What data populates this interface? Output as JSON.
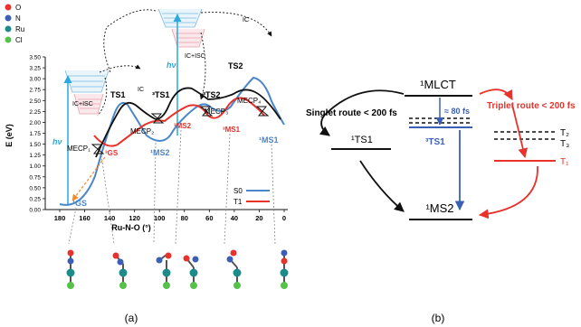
{
  "legend_atoms": [
    {
      "label": "O",
      "color": "#e8322b"
    },
    {
      "label": "N",
      "color": "#3a5fb5"
    },
    {
      "label": "Ru",
      "color": "#1e8b8b"
    },
    {
      "label": "Cl",
      "color": "#56c24a"
    }
  ],
  "panel_a": {
    "caption": "(a)",
    "ylabel": "E (eV)",
    "xlabel": "Ru-N-O (°)",
    "y_ticks": [
      "0.00",
      "0.25",
      "0.50",
      "0.75",
      "1.00",
      "1.25",
      "1.50",
      "1.75",
      "2.00",
      "2.25",
      "2.50",
      "2.75",
      "3.00",
      "3.25",
      "3.50"
    ],
    "x_ticks": [
      "180",
      "160",
      "140",
      "120",
      "100",
      "80",
      "60",
      "40",
      "20",
      "0"
    ],
    "series_legend": [
      {
        "label": "S0",
        "color": "#4a86c8"
      },
      {
        "label": "T1",
        "color": "#e8322b"
      }
    ],
    "labels": {
      "gs_singlet": "¹GS",
      "gs_triplet": "³GS",
      "mecp1": "MECP₁",
      "mecp2": "MECP₂",
      "mecp3": "MECP₃",
      "mecp4": "MECP₄",
      "ts1": "TS1",
      "ts1_triplet": "³TS1",
      "ts2": "TS2",
      "ts2_triplet": "³TS2",
      "ms2_singlet": "¹MS2",
      "ms2_triplet": "³MS2",
      "ms1_triplet": "³MS1",
      "ms1_singlet": "¹MS1",
      "hv_left": "hν",
      "hv_right": "hν",
      "ic_isc_left": "IC+ISC",
      "ic_isc_right": "IC+ISC",
      "ic_left": "IC",
      "ic_right": "IC"
    }
  },
  "panel_b": {
    "caption": "(b)",
    "mlct": "¹MLCT",
    "singlet_route": "Singlet route < 200 fs",
    "triplet_route": "Triplet route < 200 fs",
    "fs80": "≈ 80 fs",
    "ts1_singlet": "¹TS1",
    "ts1_triplet": "³TS1",
    "t2": "T₂",
    "t3": "T₃",
    "t1": "T₁",
    "ms2": "¹MS2"
  }
}
